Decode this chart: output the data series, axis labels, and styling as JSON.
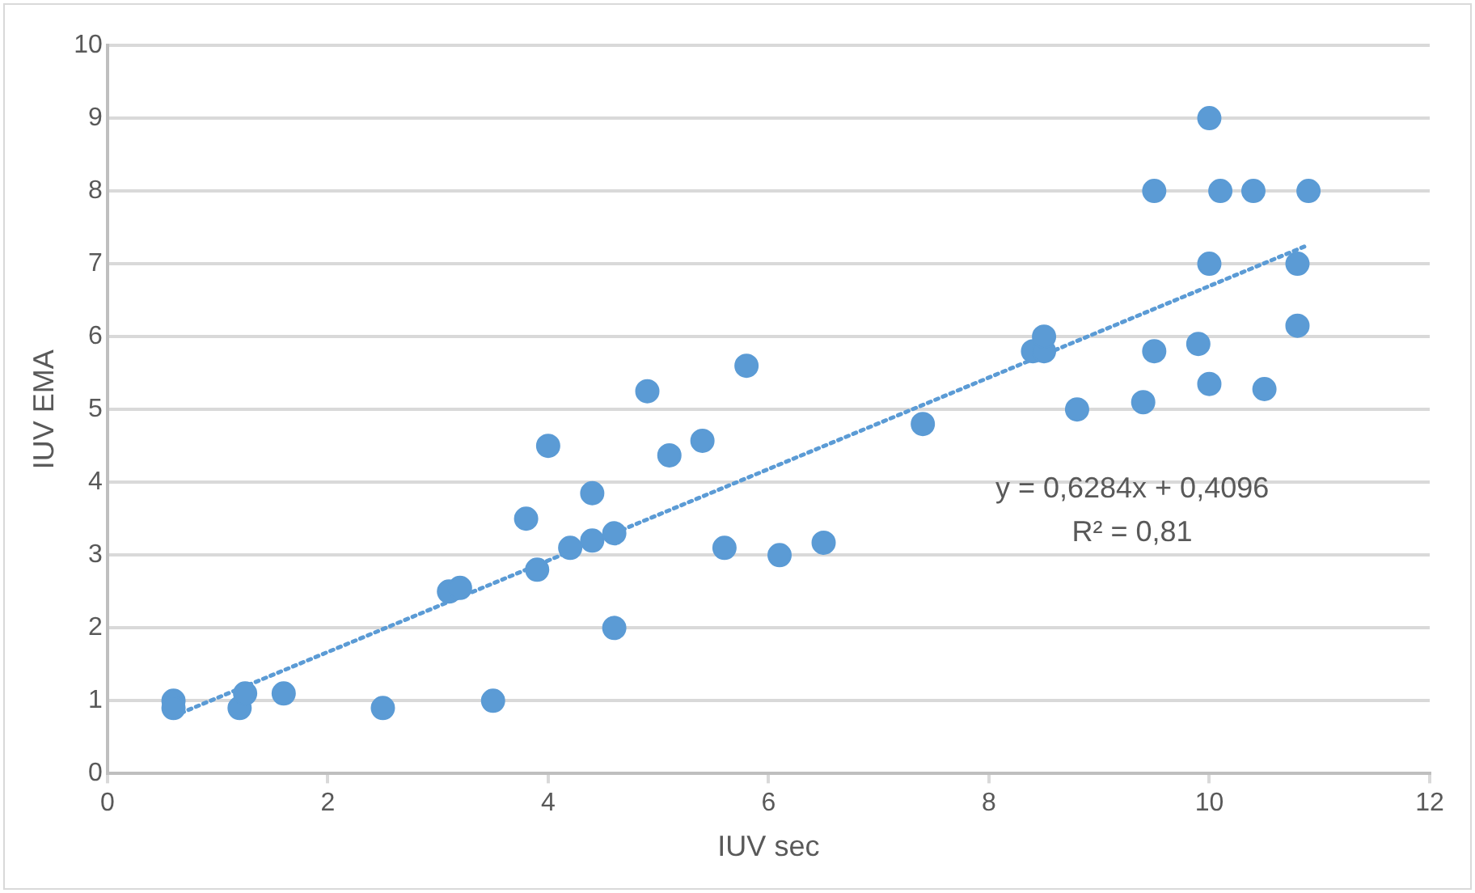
{
  "chart_data": {
    "type": "scatter",
    "xlabel": "IUV sec",
    "ylabel": "IUV EMA",
    "xlim": [
      0,
      12
    ],
    "xticks": [
      0,
      2,
      4,
      6,
      8,
      10,
      12
    ],
    "ylim": [
      0,
      10
    ],
    "yticks": [
      0,
      1,
      2,
      3,
      4,
      5,
      6,
      7,
      8,
      9,
      10
    ],
    "grid": "y",
    "legend": false,
    "marker": "circle",
    "series": [
      {
        "color": "#5b9bd5",
        "x": [
          0.6,
          0.6,
          1.2,
          1.25,
          1.6,
          2.5,
          3.5,
          3.1,
          3.2,
          3.8,
          3.9,
          4.0,
          4.2,
          4.4,
          4.4,
          4.6,
          4.6,
          4.9,
          5.1,
          5.4,
          5.6,
          5.8,
          6.1,
          6.5,
          7.4,
          8.4,
          8.5,
          8.5,
          8.8,
          9.4,
          9.5,
          9.5,
          9.9,
          10.0,
          10.0,
          10.0,
          10.1,
          10.4,
          10.5,
          10.8,
          10.8,
          10.9
        ],
        "values": [
          1.0,
          0.9,
          0.9,
          1.1,
          1.1,
          0.9,
          1.0,
          2.5,
          2.55,
          3.5,
          2.8,
          4.5,
          3.1,
          3.2,
          3.85,
          3.3,
          2.0,
          5.25,
          4.37,
          4.57,
          3.1,
          5.6,
          3.0,
          3.17,
          4.8,
          5.8,
          5.8,
          6.0,
          5.0,
          5.1,
          5.8,
          8.0,
          5.9,
          9.0,
          7.0,
          5.35,
          8.0,
          8.0,
          5.28,
          7.0,
          6.15,
          8.0
        ]
      },
      {
        "type": "line",
        "color": "#5b9bd5",
        "line_style": "dotted",
        "marker": "none",
        "x": [
          0.6,
          10.9
        ],
        "values": [
          0.79,
          7.26
        ]
      }
    ],
    "annotations": [
      "y = 0,6284x + 0,4096",
      "R² = 0,81"
    ]
  }
}
